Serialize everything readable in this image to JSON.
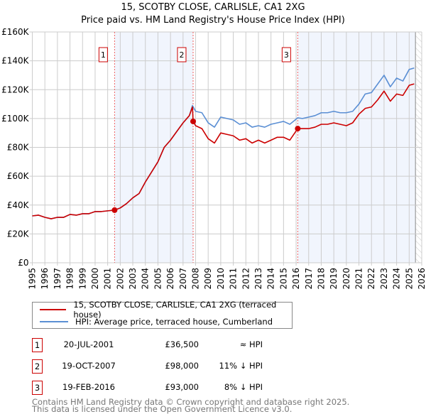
{
  "chart_data": {
    "type": "line",
    "title": "15, SCOTBY CLOSE, CARLISLE, CA1 2XG",
    "subtitle": "Price paid vs. HM Land Registry's House Price Index (HPI)",
    "xlim": [
      1995,
      2026
    ],
    "ylim": [
      0,
      160000
    ],
    "x_ticks": [
      "1995",
      "1996",
      "1997",
      "1998",
      "1999",
      "2000",
      "2001",
      "2002",
      "2003",
      "2004",
      "2005",
      "2006",
      "2007",
      "2008",
      "2009",
      "2010",
      "2011",
      "2012",
      "2013",
      "2014",
      "2015",
      "2016",
      "2017",
      "2018",
      "2019",
      "2020",
      "2021",
      "2022",
      "2023",
      "2024",
      "2025",
      "2026"
    ],
    "y_ticks": [
      {
        "v": 0,
        "label": "£0"
      },
      {
        "v": 20000,
        "label": "£20K"
      },
      {
        "v": 40000,
        "label": "£40K"
      },
      {
        "v": 60000,
        "label": "£60K"
      },
      {
        "v": 80000,
        "label": "£80K"
      },
      {
        "v": 100000,
        "label": "£100K"
      },
      {
        "v": 120000,
        "label": "£120K"
      },
      {
        "v": 140000,
        "label": "£140K"
      },
      {
        "v": 160000,
        "label": "£160K"
      }
    ],
    "grid": true,
    "forecast_hatch_from": 2025.5,
    "series": [
      {
        "name": "15, SCOTBY CLOSE, CARLISLE, CA1 2XG (terraced house)",
        "color": "#cc0000",
        "x": [
          1995,
          1995.5,
          1996,
          1996.5,
          1997,
          1997.5,
          1998,
          1998.5,
          1999,
          1999.5,
          2000,
          2000.5,
          2001,
          2001.55,
          2002,
          2002.5,
          2003,
          2003.5,
          2004,
          2004.5,
          2005,
          2005.5,
          2006,
          2006.5,
          2007,
          2007.5,
          2007.75,
          2007.8,
          2008,
          2008.5,
          2009,
          2009.5,
          2010,
          2010.5,
          2011,
          2011.5,
          2012,
          2012.5,
          2013,
          2013.5,
          2014,
          2014.5,
          2015,
          2015.5,
          2016.13,
          2016.5,
          2017,
          2017.5,
          2018,
          2018.5,
          2019,
          2019.5,
          2020,
          2020.5,
          2021,
          2021.5,
          2022,
          2022.5,
          2023,
          2023.5,
          2024,
          2024.5,
          2025,
          2025.4
        ],
        "y": [
          32500,
          33000,
          31500,
          30500,
          31500,
          31500,
          33500,
          33000,
          34000,
          34000,
          35500,
          35500,
          36000,
          36500,
          38000,
          41000,
          45000,
          48000,
          56000,
          63000,
          70000,
          80000,
          85000,
          91000,
          97000,
          102000,
          108000,
          98000,
          95000,
          93000,
          86000,
          83000,
          90000,
          89000,
          88000,
          85000,
          86000,
          83000,
          85000,
          83000,
          85000,
          87000,
          87000,
          85000,
          93000,
          93000,
          93000,
          94000,
          96000,
          96000,
          97000,
          96000,
          95000,
          97000,
          103000,
          107000,
          108000,
          113000,
          119000,
          112000,
          117000,
          116000,
          123000,
          124000
        ]
      },
      {
        "name": "HPI: Average price, terraced house, Cumberland",
        "color": "#5b8fd4",
        "x": [
          1995,
          1995.5,
          1996,
          1996.5,
          1997,
          1997.5,
          1998,
          1998.5,
          1999,
          1999.5,
          2000,
          2000.5,
          2001,
          2001.55,
          2002,
          2002.5,
          2003,
          2003.5,
          2004,
          2004.5,
          2005,
          2005.5,
          2006,
          2006.5,
          2007,
          2007.5,
          2007.75,
          2008,
          2008.5,
          2009,
          2009.5,
          2010,
          2010.5,
          2011,
          2011.5,
          2012,
          2012.5,
          2013,
          2013.5,
          2014,
          2014.5,
          2015,
          2015.5,
          2016.13,
          2016.5,
          2017,
          2017.5,
          2018,
          2018.5,
          2019,
          2019.5,
          2020,
          2020.5,
          2021,
          2021.5,
          2022,
          2022.5,
          2023,
          2023.5,
          2024,
          2024.5,
          2025,
          2025.4
        ],
        "y": [
          32500,
          33000,
          31500,
          30500,
          31500,
          31500,
          33500,
          33000,
          34000,
          34000,
          35500,
          35500,
          36000,
          36500,
          38000,
          41000,
          45000,
          48000,
          56000,
          63000,
          70000,
          80000,
          85000,
          91000,
          97000,
          102000,
          109000,
          105000,
          104000,
          97000,
          94000,
          101000,
          100000,
          99000,
          96000,
          97000,
          94000,
          95000,
          94000,
          96000,
          97000,
          98000,
          96000,
          100500,
          100000,
          101000,
          102000,
          104000,
          104000,
          105000,
          104000,
          104000,
          105000,
          110000,
          117000,
          118000,
          124000,
          130000,
          122000,
          128000,
          126000,
          134000,
          135000
        ]
      }
    ],
    "sales": [
      {
        "n": "1",
        "x": 2001.55,
        "y": 36500,
        "date": "20-JUL-2001",
        "price": "£36,500",
        "hpi": "≈ HPI"
      },
      {
        "n": "2",
        "x": 2007.8,
        "y": 98000,
        "date": "19-OCT-2007",
        "price": "£98,000",
        "hpi": "11% ↓ HPI"
      },
      {
        "n": "3",
        "x": 2016.13,
        "y": 93000,
        "date": "19-FEB-2016",
        "price": "£93,000",
        "hpi": "8% ↓ HPI"
      }
    ],
    "shaded_ranges": [
      [
        2001.55,
        2007.8
      ],
      [
        2016.13,
        2025.5
      ]
    ],
    "legend_position": "bottom"
  },
  "footer": {
    "line1": "Contains HM Land Registry data © Crown copyright and database right 2025.",
    "line2": "This data is licensed under the Open Government Licence v3.0."
  }
}
